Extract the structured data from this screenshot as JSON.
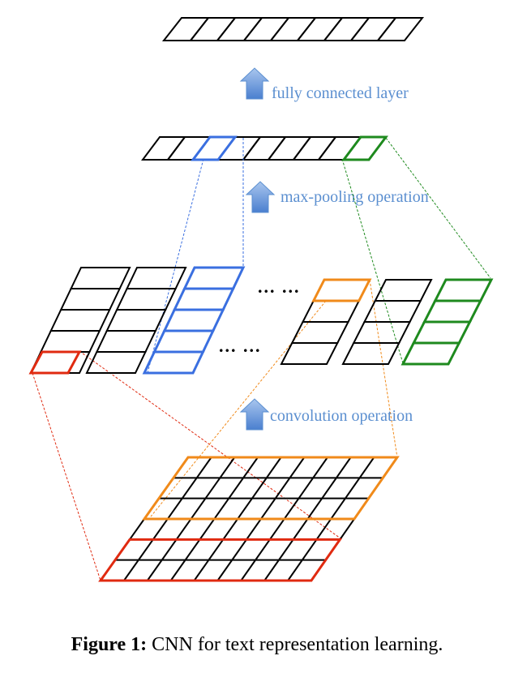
{
  "labels": {
    "fully_connected": "fully connected layer",
    "max_pooling": "max-pooling operation",
    "convolution": "convolution operation",
    "ellipsis_upper": "... ...",
    "ellipsis_lower": "... ..."
  },
  "caption": {
    "prefix": "Figure 1:",
    "text": "CNN for text representation learning."
  },
  "colors": {
    "arrow": "#5b8fd0",
    "label": "#5b8fd0",
    "blue": "#3a6fe0",
    "green": "#1e8a1e",
    "red": "#e02a10",
    "orange": "#f08a1a",
    "black": "#000000"
  }
}
